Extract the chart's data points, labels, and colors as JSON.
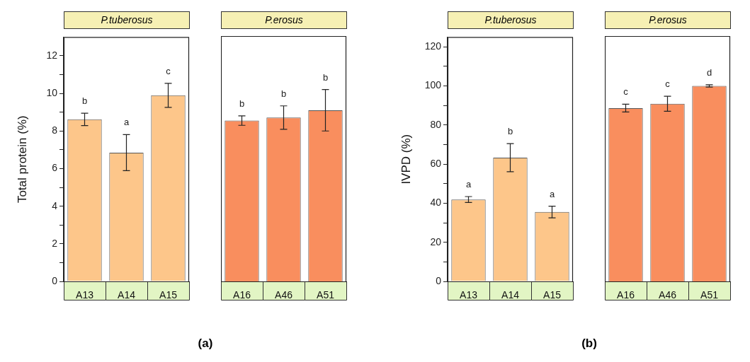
{
  "chart_data": [
    {
      "type": "bar",
      "title": "P.tuberosus",
      "ylabel": "Total protein (%)",
      "categories": [
        "A13",
        "A14",
        "A15"
      ],
      "values": [
        8.62,
        6.85,
        9.9
      ],
      "errors": [
        0.33,
        0.96,
        0.64
      ],
      "value_labels": [
        "b",
        "a",
        "c"
      ],
      "color": "#fdc68a",
      "ylim": [
        0,
        13
      ],
      "yticks": [
        0,
        {
          "value": 1,
          "label": null
        },
        2,
        {
          "value": 3,
          "label": null
        },
        4,
        {
          "value": 5,
          "label": null
        },
        6,
        {
          "value": 7,
          "label": null
        },
        8,
        {
          "value": 9,
          "label": null
        },
        10,
        {
          "value": 11,
          "label": null
        },
        12
      ],
      "annotations": [
        "(a)"
      ]
    },
    {
      "type": "bar",
      "title": "P.erosus",
      "categories": [
        "A16",
        "A46",
        "A51"
      ],
      "values": [
        8.52,
        8.68,
        9.07
      ],
      "errors": [
        0.25,
        0.62,
        1.1
      ],
      "value_labels": [
        "b",
        "b",
        "b"
      ],
      "color": "#f98e5e",
      "ylim": [
        0,
        13
      ],
      "tick_labels": "x"
    },
    {
      "type": "bar",
      "title": "P.tuberosus",
      "ylabel": "IVPD (%)",
      "categories": [
        "A13",
        "A14",
        "A15"
      ],
      "values": [
        41.9,
        63.3,
        35.5
      ],
      "errors": [
        1.5,
        7.2,
        3
      ],
      "value_labels": [
        "a",
        "b",
        "a"
      ],
      "color": "#fdc68a",
      "ylim": [
        0,
        125
      ],
      "yticks": [
        0,
        {
          "value": 10,
          "label": null
        },
        20,
        {
          "value": 30,
          "label": null
        },
        40,
        {
          "value": 50,
          "label": null
        },
        60,
        {
          "value": 70,
          "label": null
        },
        80,
        {
          "value": 90,
          "label": null
        },
        100,
        {
          "value": 110,
          "label": null
        },
        120
      ],
      "annotations": [
        "(b)"
      ]
    },
    {
      "type": "bar",
      "title": "P.erosus",
      "categories": [
        "A16",
        "A46",
        "A51"
      ],
      "values": [
        88.3,
        90.5,
        99.6
      ],
      "errors": [
        2,
        3.8,
        0.6
      ],
      "value_labels": [
        "c",
        "c",
        "d"
      ],
      "color": "#f98e5e",
      "ylim": [
        0,
        125
      ],
      "tick_labels": "x"
    }
  ]
}
